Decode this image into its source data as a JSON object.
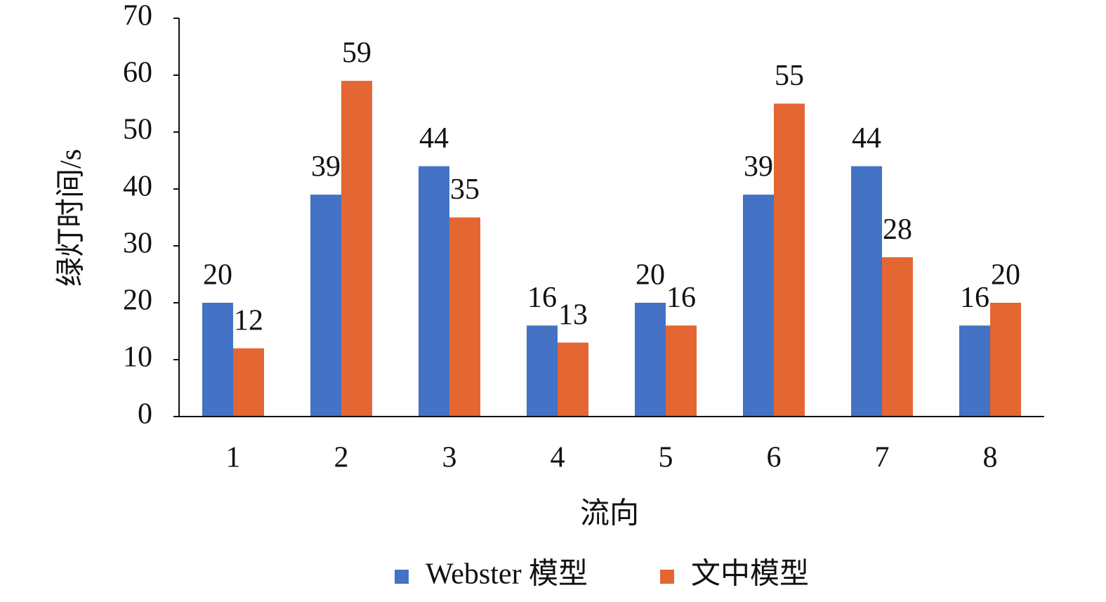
{
  "chart_data": {
    "type": "bar",
    "x_label": "流向",
    "y_label": "绿灯时间/s",
    "categories": [
      "1",
      "2",
      "3",
      "4",
      "5",
      "6",
      "7",
      "8"
    ],
    "series": [
      {
        "name": "Webster 模型",
        "color": "#4472c4",
        "values": [
          20,
          39,
          44,
          16,
          20,
          39,
          44,
          16
        ]
      },
      {
        "name": "文中模型",
        "color": "#e46633",
        "values": [
          12,
          59,
          35,
          13,
          16,
          55,
          28,
          20
        ]
      }
    ],
    "ylim": [
      0,
      70
    ],
    "yticks": [
      0,
      10,
      20,
      30,
      40,
      50,
      60,
      70
    ],
    "grid": false,
    "legend": "bottom"
  }
}
